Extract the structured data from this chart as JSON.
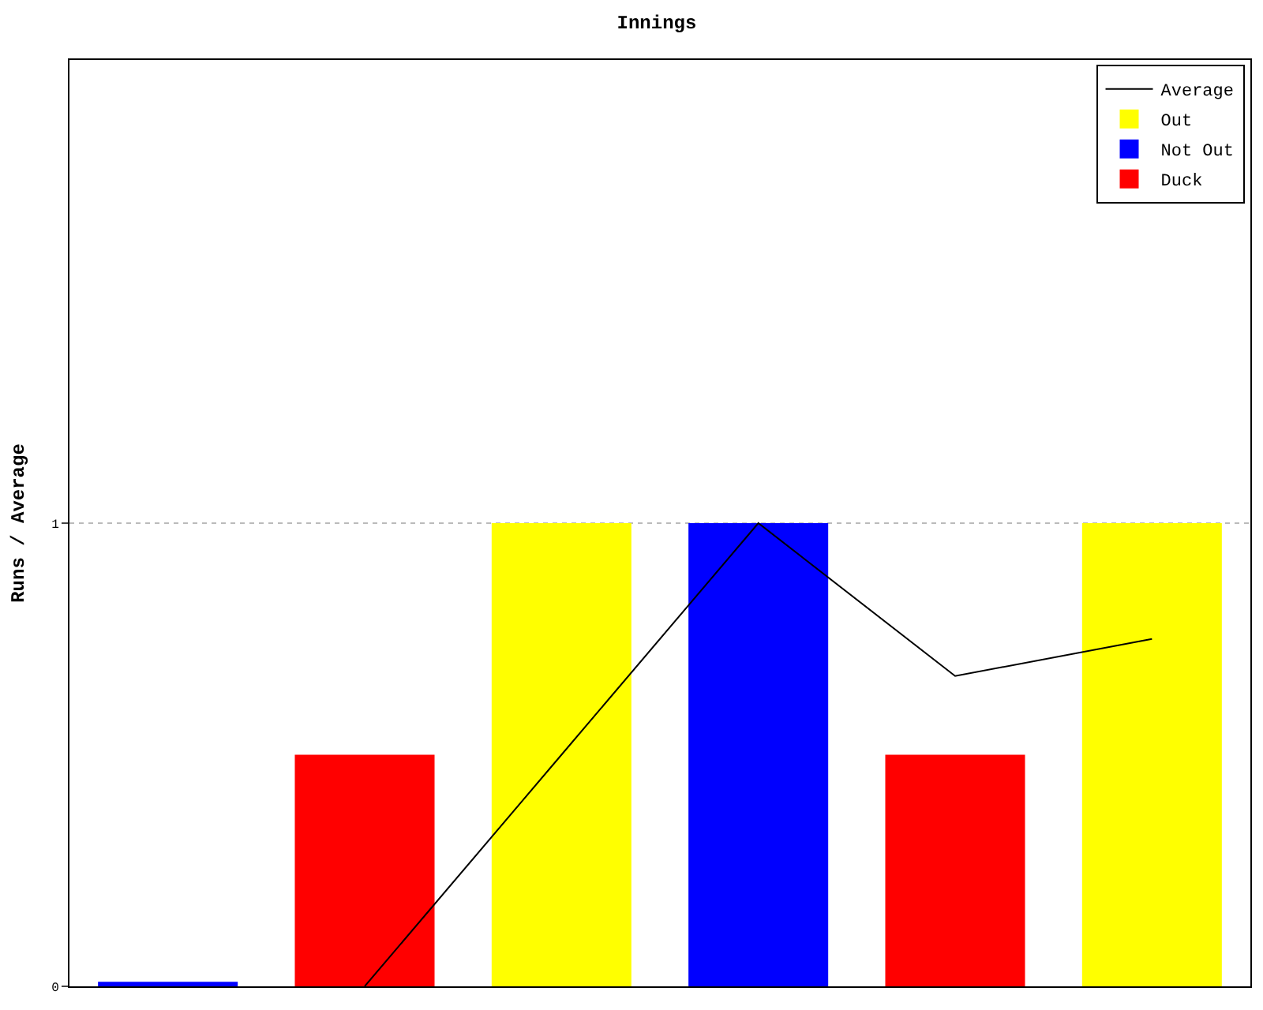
{
  "chart_data": {
    "type": "bar",
    "title": "Innings",
    "ylabel": "Runs / Average",
    "categories": [
      null,
      null,
      null,
      null,
      null,
      null
    ],
    "series": [
      {
        "name": "Average",
        "type": "line",
        "color": "#000000",
        "values": [
          null,
          0,
          0.5,
          1,
          0.67,
          0.75
        ]
      },
      {
        "name": "Out",
        "color": "#ffff00",
        "values": [
          null,
          null,
          1,
          null,
          null,
          1
        ]
      },
      {
        "name": "Not Out",
        "color": "#0000ff",
        "values": [
          0.01,
          null,
          null,
          1,
          null,
          null
        ]
      },
      {
        "name": "Duck",
        "color": "#ff0000",
        "values": [
          null,
          0.5,
          null,
          null,
          0.5,
          null
        ]
      }
    ],
    "ylim": [
      0,
      2
    ],
    "yticks": [
      0,
      1
    ],
    "grid": "y",
    "legend": "top right",
    "tick_labels": "y",
    "marker": "none",
    "line_style": "solid"
  }
}
